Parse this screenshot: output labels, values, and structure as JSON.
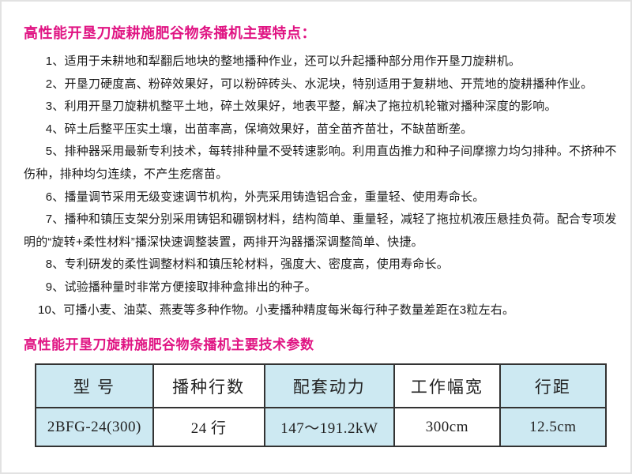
{
  "features_title": "高性能开垦刀旋耕施肥谷物条播机主要特点：",
  "features": [
    "1、适用于未耕地和犁翻后地块的整地播种作业，还可以升起播种部分用作开垦刀旋耕机。",
    "2、开垦刀硬度高、粉碎效果好，可以粉碎砖头、水泥块，特别适用于复耕地、开荒地的旋耕播种作业。",
    "3、利用开垦刀旋耕机整平土地，碎土效果好，地表平整，解决了拖拉机轮辙对播种深度的影响。",
    "4、碎土后整平压实土壤，出苗率高，保墒效果好，苗全苗齐苗壮，不缺苗断垄。",
    "5、排种器采用最新专利技术，每转排种量不受转速影响。利用直齿推力和种子间摩擦力均匀排种。不挤种不伤种，排种均匀连续，不产生疙瘩苗。",
    "6、播量调节采用无级变速调节机构，外壳采用铸造铝合金，重量轻、使用寿命长。",
    "7、播种和镇压支架分别采用铸铝和硼钢材料，结构简单、重量轻，减轻了拖拉机液压悬挂负荷。配合专项发明的“旋转+柔性材料”播深快速调整装置，两排开沟器播深调整简单、快捷。",
    "8、专利研发的柔性调整材料和镇压轮材料，强度大、密度高，使用寿命长。",
    "9、试验播种量时非常方便接取排种盒排出的种子。",
    "10、可播小麦、油菜、燕麦等多种作物。小麦播种精度每米每行种子数量差距在3粒左右。"
  ],
  "specs_title": "高性能开垦刀旋耕施肥谷物条播机主要技术参数",
  "table": {
    "headers": [
      "型 号",
      "播种行数",
      "配套动力",
      "工作幅宽",
      "行距"
    ],
    "rows": [
      [
        "2BFG-24(300)",
        "24 行",
        "147～191.2kW",
        "300cm",
        "12.5cm"
      ]
    ]
  },
  "colors": {
    "accent": "#e01483",
    "table_blue": "#cde9f2"
  }
}
